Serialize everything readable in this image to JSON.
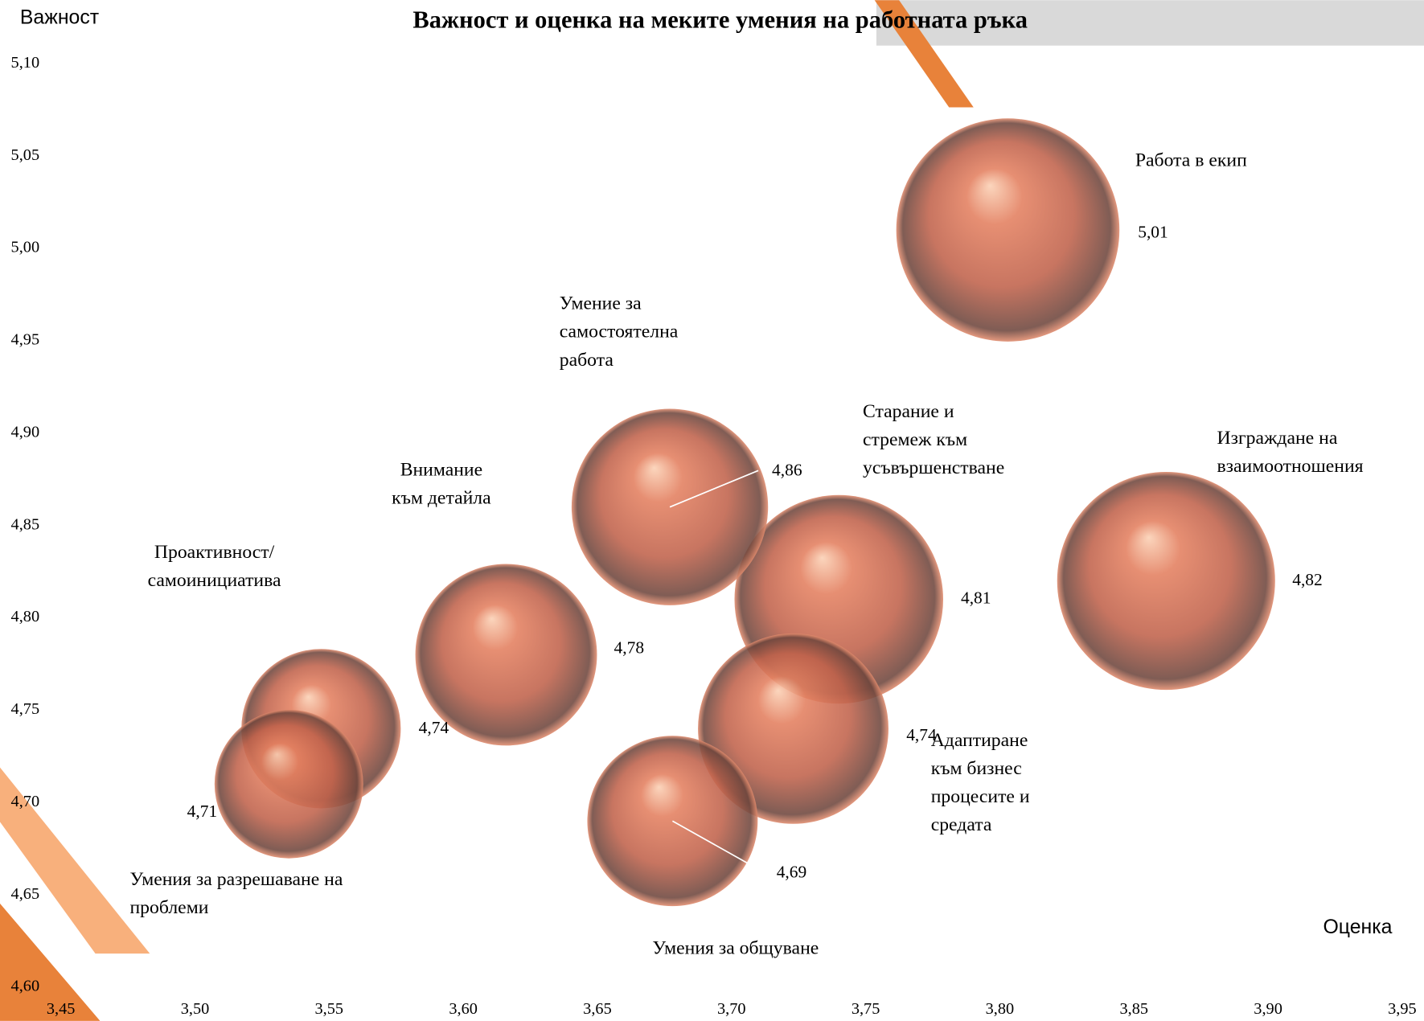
{
  "chart_data": {
    "type": "bubble",
    "title": "Важност и оценка на меките умения на работната ръка",
    "x_label": "Оценка",
    "y_label": "Важност",
    "labels": [
      "Работа в екип",
      "Изграждане на взаимоотношения",
      "Старание и стремеж към усъвършенстване",
      "Умение за самостоятелна работа",
      "Внимание към детайла",
      "Адаптиране към бизнес процесите и средата",
      "Проактивност/ самоинициатива",
      "Умения за разрешаване на проблеми",
      "Умения за общуване"
    ],
    "x": [
      3.803,
      3.862,
      3.74,
      3.677,
      3.616,
      3.723,
      3.547,
      3.535,
      3.678
    ],
    "y": [
      5.01,
      4.82,
      4.81,
      4.86,
      4.78,
      4.74,
      4.74,
      4.71,
      4.69
    ],
    "value_labels": [
      "5,01",
      "4,82",
      "4,81",
      "4,86",
      "4,78",
      "4,74",
      "4,74",
      "4,71",
      "4,69"
    ],
    "sizes": [
      151,
      144,
      132,
      117,
      100,
      110,
      77,
      67,
      88
    ],
    "color": "#d9704f",
    "xlim": [
      3.45,
      3.95
    ],
    "xticks": [
      {
        "value": 3.45,
        "label": "3,45"
      },
      {
        "value": 3.5,
        "label": "3,50"
      },
      {
        "value": 3.55,
        "label": "3,55"
      },
      {
        "value": 3.6,
        "label": "3,60"
      },
      {
        "value": 3.65,
        "label": "3,65"
      },
      {
        "value": 3.7,
        "label": "3,70"
      },
      {
        "value": 3.75,
        "label": "3,75"
      },
      {
        "value": 3.8,
        "label": "3,80"
      },
      {
        "value": 3.85,
        "label": "3,85"
      },
      {
        "value": 3.9,
        "label": "3,90"
      },
      {
        "value": 3.95,
        "label": "3,95"
      }
    ],
    "ylim": [
      4.6,
      5.1
    ],
    "yticks": [
      {
        "value": 4.6,
        "label": "4,60"
      },
      {
        "value": 4.65,
        "label": "4,65"
      },
      {
        "value": 4.7,
        "label": "4,70"
      },
      {
        "value": 4.75,
        "label": "4,75"
      },
      {
        "value": 4.8,
        "label": "4,80"
      },
      {
        "value": 4.85,
        "label": "4,85"
      },
      {
        "value": 4.9,
        "label": "4,90"
      },
      {
        "value": 4.95,
        "label": "4,95"
      },
      {
        "value": 5.0,
        "label": "5,00"
      },
      {
        "value": 5.05,
        "label": "5,05"
      },
      {
        "value": 5.1,
        "label": "5,10"
      }
    ]
  }
}
